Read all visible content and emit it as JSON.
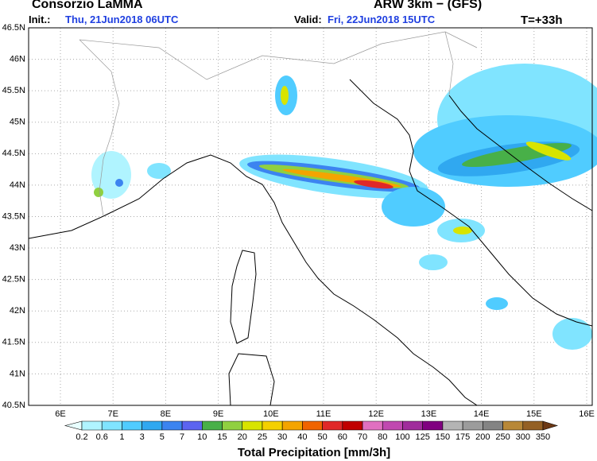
{
  "header": {
    "org": "Consorzio LaMMA",
    "model": "ARW 3km − (GFS)",
    "init_label": "Init.:",
    "init": "Thu, 21Jun2018 06UTC",
    "valid_label": "Valid:",
    "valid": "Fri, 22Jun2018 15UTC",
    "forecast": "T=+33h"
  },
  "map": {
    "lat_labels": [
      "46.5N",
      "46N",
      "45.5N",
      "45N",
      "44.5N",
      "44N",
      "43.5N",
      "43N",
      "42.5N",
      "42N",
      "41.5N",
      "41N",
      "40.5N"
    ],
    "lon_labels": [
      "6E",
      "7E",
      "8E",
      "9E",
      "10E",
      "11E",
      "12E",
      "13E",
      "14E",
      "15E",
      "16E"
    ]
  },
  "colorbar": {
    "title": "Total Precipitation [mm/3h]",
    "levels": [
      0.2,
      0.6,
      1,
      3,
      5,
      7,
      10,
      15,
      20,
      25,
      30,
      40,
      50,
      60,
      70,
      80,
      100,
      125,
      150,
      175,
      200,
      250,
      300,
      350
    ],
    "colors": [
      "#e8ffff",
      "#b0f4ff",
      "#80e4ff",
      "#50ccff",
      "#30a8f0",
      "#3c84f0",
      "#5c64f0",
      "#48b048",
      "#90d040",
      "#d8e400",
      "#f4d000",
      "#f4a400",
      "#f06400",
      "#e02828",
      "#c00000",
      "#e070c0",
      "#c048b0",
      "#a02c9c",
      "#800080",
      "#b4b4b4",
      "#9c9c9c",
      "#848484",
      "#b88838",
      "#946024",
      "#6c3814"
    ]
  }
}
